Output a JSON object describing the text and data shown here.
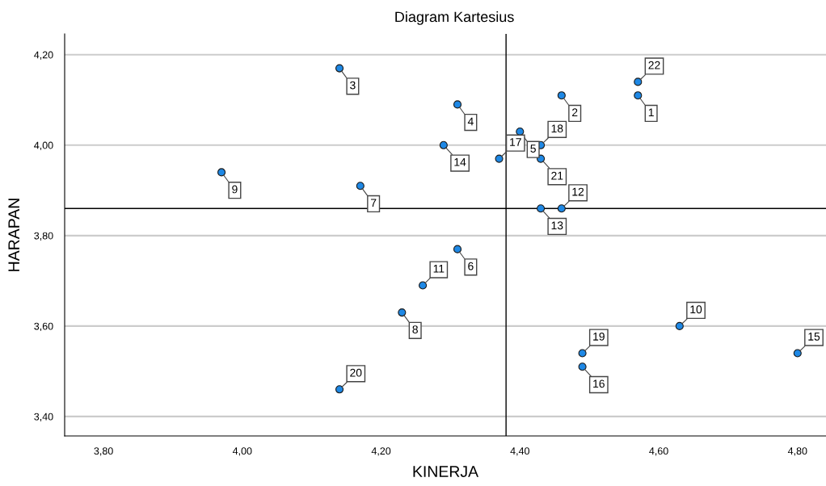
{
  "chart_data": {
    "type": "scatter",
    "title": "Diagram Kartesius",
    "xlabel": "KINERJA",
    "ylabel": "HARAPAN",
    "x": [
      4.57,
      4.46,
      4.14,
      4.31,
      4.4,
      4.31,
      4.17,
      4.23,
      3.97,
      4.63,
      4.26,
      4.46,
      4.43,
      4.29,
      4.8,
      4.49,
      4.37,
      4.43,
      4.49,
      4.14,
      4.43,
      4.57
    ],
    "series": [
      {
        "color": "#1e88e5",
        "values": [
          4.11,
          4.11,
          4.17,
          4.09,
          4.03,
          3.77,
          3.91,
          3.63,
          3.94,
          3.6,
          3.69,
          3.86,
          3.86,
          4.0,
          3.54,
          3.51,
          3.97,
          4.0,
          3.54,
          3.46,
          3.97,
          4.14
        ]
      }
    ],
    "marker": "circle",
    "grid": "y",
    "xlim": [
      3.744,
      4.841
    ],
    "ylim": [
      3.357,
      4.246
    ],
    "xticks": [
      {
        "value": 3.8,
        "label": "3,80"
      },
      {
        "value": 4.0,
        "label": "4,00"
      },
      {
        "value": 4.2,
        "label": "4,20"
      },
      {
        "value": 4.4,
        "label": "4,40"
      },
      {
        "value": 4.6,
        "label": "4,60"
      },
      {
        "value": 4.8,
        "label": "4,80"
      }
    ],
    "yticks": [
      {
        "value": 3.4,
        "label": "3,40"
      },
      {
        "value": 3.6,
        "label": "3,60"
      },
      {
        "value": 3.8,
        "label": "3,80"
      },
      {
        "value": 4.0,
        "label": "4,00"
      },
      {
        "value": 4.2,
        "label": "4,20"
      }
    ],
    "ref_lines": [
      {
        "axis": "x",
        "value": 4.38,
        "color": "#000000"
      },
      {
        "axis": "y",
        "value": 3.86,
        "color": "#000000"
      }
    ],
    "annotations": [
      {
        "text": "1",
        "x": 4.57,
        "y": 4.11
      },
      {
        "text": "2",
        "x": 4.46,
        "y": 4.11
      },
      {
        "text": "3",
        "x": 4.14,
        "y": 4.17
      },
      {
        "text": "4",
        "x": 4.31,
        "y": 4.09
      },
      {
        "text": "5",
        "x": 4.4,
        "y": 4.03
      },
      {
        "text": "6",
        "x": 4.31,
        "y": 3.77
      },
      {
        "text": "7",
        "x": 4.17,
        "y": 3.91
      },
      {
        "text": "8",
        "x": 4.23,
        "y": 3.63
      },
      {
        "text": "9",
        "x": 3.97,
        "y": 3.94
      },
      {
        "text": "10",
        "x": 4.63,
        "y": 3.6
      },
      {
        "text": "11",
        "x": 4.26,
        "y": 3.69
      },
      {
        "text": "12",
        "x": 4.46,
        "y": 3.86
      },
      {
        "text": "13",
        "x": 4.43,
        "y": 3.86
      },
      {
        "text": "14",
        "x": 4.29,
        "y": 4.0
      },
      {
        "text": "15",
        "x": 4.8,
        "y": 3.54
      },
      {
        "text": "16",
        "x": 4.49,
        "y": 3.51
      },
      {
        "text": "17",
        "x": 4.37,
        "y": 3.97
      },
      {
        "text": "18",
        "x": 4.43,
        "y": 4.0
      },
      {
        "text": "19",
        "x": 4.49,
        "y": 3.54
      },
      {
        "text": "20",
        "x": 4.14,
        "y": 3.46
      },
      {
        "text": "21",
        "x": 4.43,
        "y": 3.97
      },
      {
        "text": "22",
        "x": 4.57,
        "y": 4.14
      }
    ]
  }
}
